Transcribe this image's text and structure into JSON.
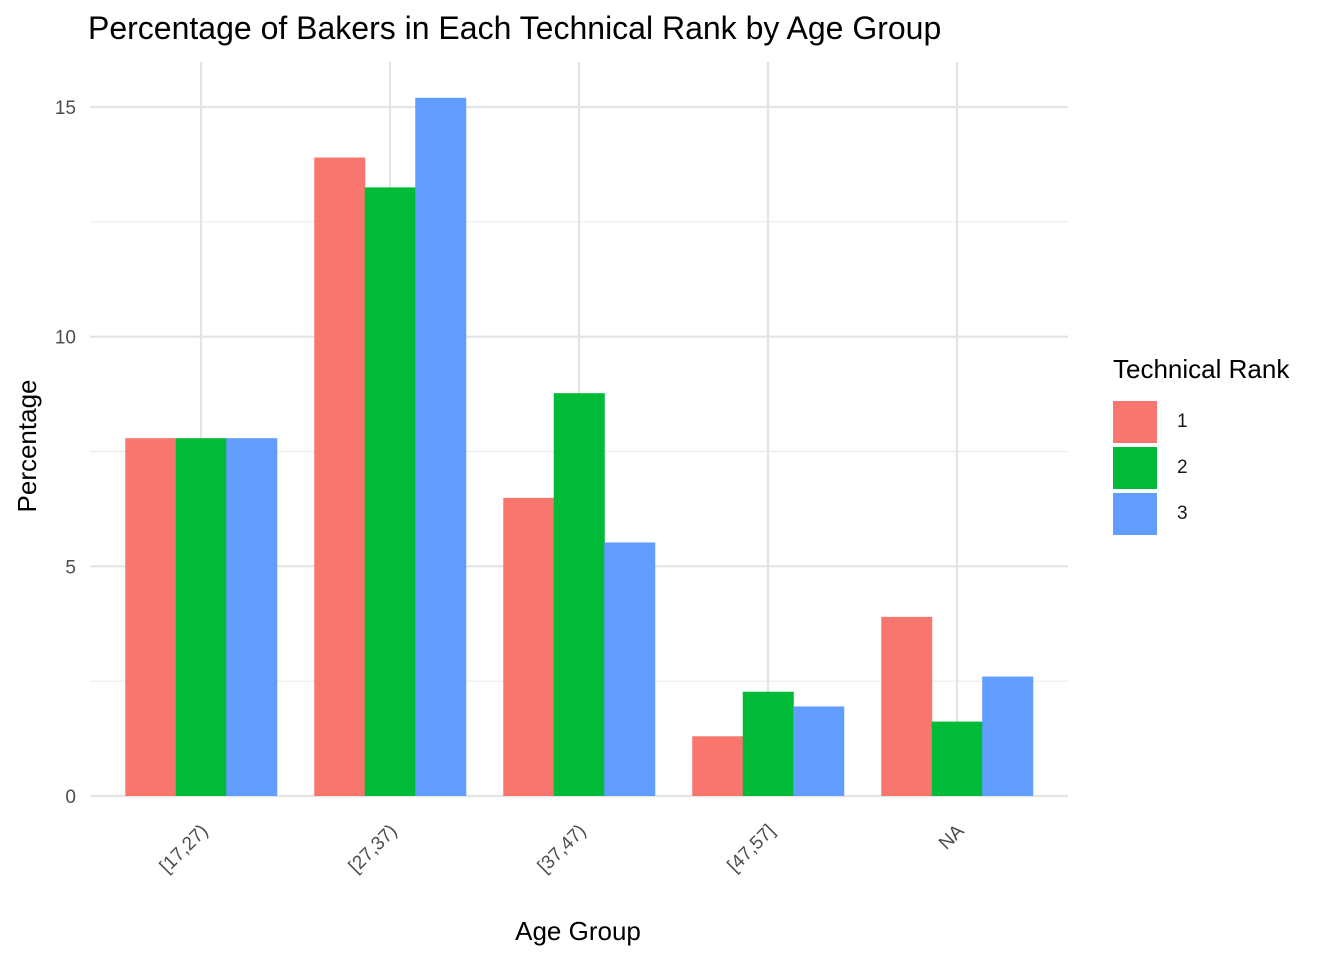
{
  "chart_data": {
    "type": "bar",
    "title": "Percentage of Bakers in Each Technical Rank by Age Group",
    "xlabel": "Age Group",
    "ylabel": "Percentage",
    "categories": [
      "[17,27)",
      "[27,37)",
      "[37,47)",
      "[47,57]",
      "NA"
    ],
    "series": [
      {
        "name": "1",
        "color": "#F8766D",
        "values": [
          7.79,
          13.9,
          6.49,
          1.3,
          3.9
        ]
      },
      {
        "name": "2",
        "color": "#00BA38",
        "values": [
          7.79,
          13.25,
          8.77,
          2.27,
          1.62
        ]
      },
      {
        "name": "3",
        "color": "#619CFF",
        "values": [
          7.79,
          15.2,
          5.52,
          1.95,
          2.6
        ]
      }
    ],
    "ylim": [
      0,
      16
    ],
    "yticks": [
      0,
      5,
      10,
      15
    ],
    "grid": true,
    "legend": {
      "title": "Technical Rank",
      "position": "right"
    }
  }
}
